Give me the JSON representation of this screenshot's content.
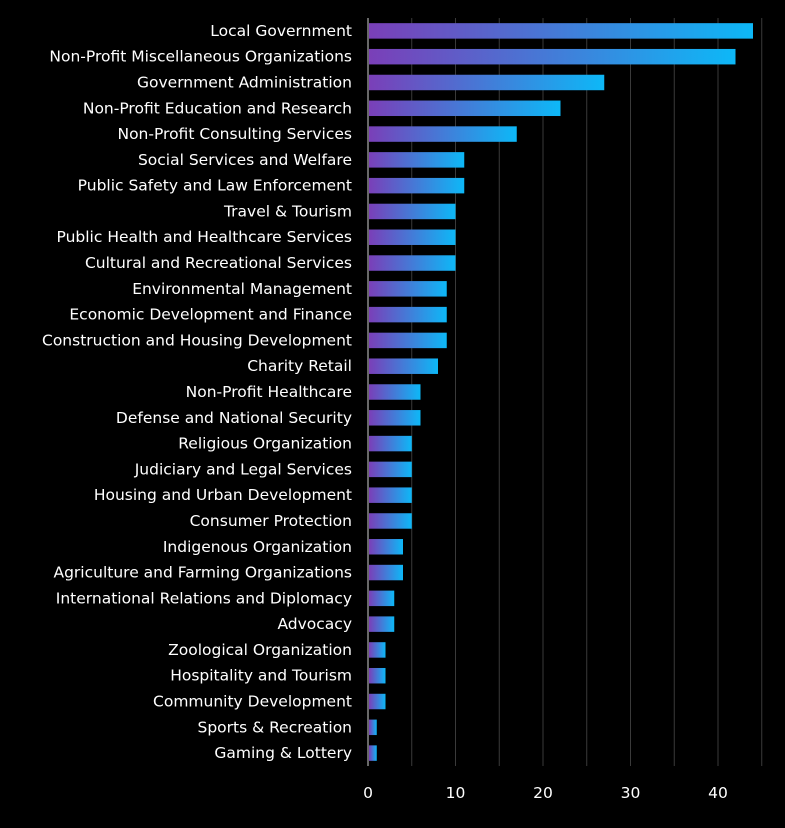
{
  "chart_data": {
    "type": "bar",
    "orientation": "horizontal",
    "title": "",
    "xlabel": "",
    "ylabel": "",
    "xlim": [
      0,
      45
    ],
    "x_ticks": [
      0,
      10,
      20,
      30,
      40
    ],
    "grid": true,
    "bar_gradient": [
      "#7a3fb8",
      "#0db8f7"
    ],
    "background": "#000000",
    "categories": [
      "Local Government",
      "Non-Profit Miscellaneous Organizations",
      "Government Administration",
      "Non-Profit Education and Research",
      "Non-Profit Consulting Services",
      "Social Services and Welfare",
      "Public Safety and Law Enforcement",
      "Travel & Tourism",
      "Public Health and Healthcare Services",
      "Cultural and Recreational Services",
      "Environmental Management",
      "Economic Development and Finance",
      "Construction and Housing Development",
      "Charity Retail",
      "Non-Profit Healthcare",
      "Defense and National Security",
      "Religious Organization",
      "Judiciary and Legal Services",
      "Housing and Urban Development",
      "Consumer Protection",
      "Indigenous Organization",
      "Agriculture and Farming Organizations",
      "International Relations and Diplomacy",
      "Advocacy",
      "Zoological Organization",
      "Hospitality and Tourism",
      "Community Development",
      "Sports & Recreation",
      "Gaming & Lottery"
    ],
    "values": [
      44,
      42,
      27,
      22,
      17,
      11,
      11,
      10,
      10,
      10,
      9,
      9,
      9,
      8,
      6,
      6,
      5,
      5,
      5,
      5,
      4,
      4,
      3,
      3,
      2,
      2,
      2,
      1,
      1
    ]
  }
}
